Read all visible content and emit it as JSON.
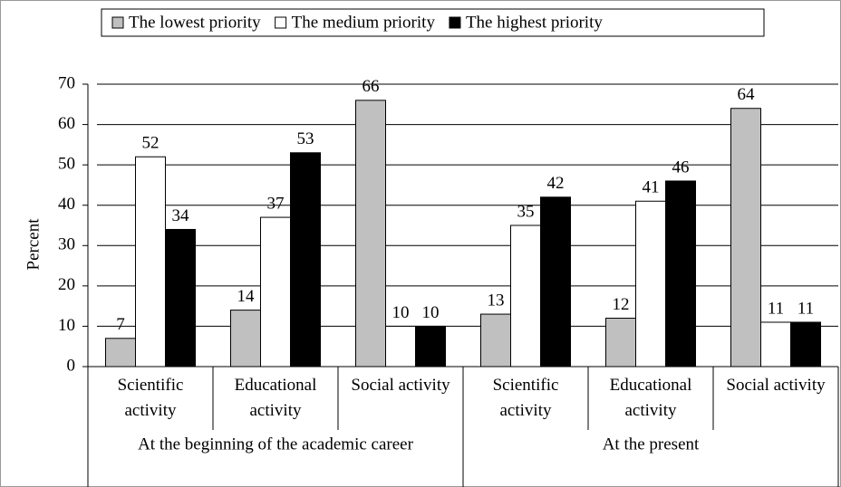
{
  "chart_data": {
    "type": "bar",
    "y_label": "Percent",
    "groups": [
      {
        "label": "At the beginning of the academic career",
        "size": 3
      },
      {
        "label": "At the present",
        "size": 3
      }
    ],
    "categories": [
      "Scientific activity",
      "Educational activity",
      "Social activity",
      "Scientific activity",
      "Educational activity",
      "Social activity"
    ],
    "series": [
      {
        "name": "The lowest priority",
        "color": "#c0c0c0",
        "values": [
          7,
          14,
          66,
          13,
          12,
          64
        ]
      },
      {
        "name": "The medium priority",
        "color": "#ffffff",
        "values": [
          52,
          37,
          10,
          35,
          41,
          11
        ]
      },
      {
        "name": "The highest priority",
        "color": "#000000",
        "values": [
          34,
          53,
          10,
          42,
          46,
          11
        ]
      }
    ],
    "ylim": [
      0,
      70
    ],
    "yticks": [
      0,
      10,
      20,
      30,
      40,
      50,
      60,
      70
    ],
    "grid": true,
    "legend": "top"
  }
}
